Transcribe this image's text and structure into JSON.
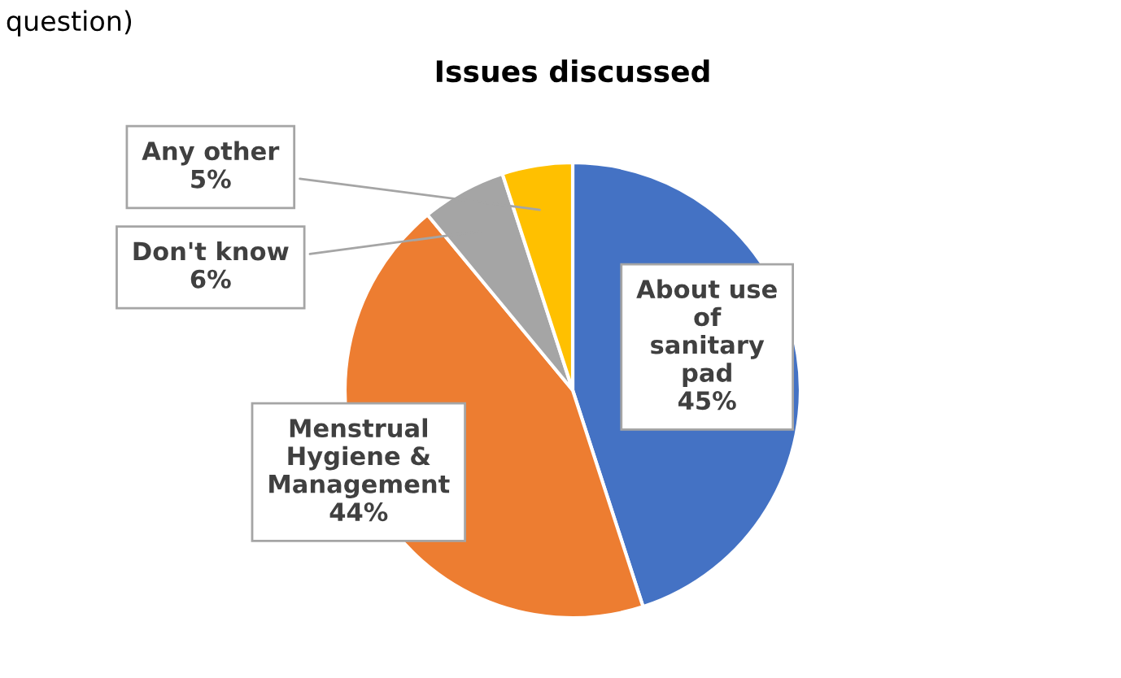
{
  "chart_data": {
    "type": "pie",
    "title": "Issues discussed",
    "categories": [
      "About use of sanitary pad",
      "Menstrual Hygiene & Management",
      "Don't know",
      "Any other"
    ],
    "values": [
      45,
      44,
      6,
      5
    ],
    "value_labels": [
      "45%",
      "44%",
      "6%",
      "5%"
    ],
    "colors": [
      "#4472c4",
      "#ed7d31",
      "#a5a5a5",
      "#ffc000"
    ],
    "annotations": [
      "question)"
    ]
  }
}
